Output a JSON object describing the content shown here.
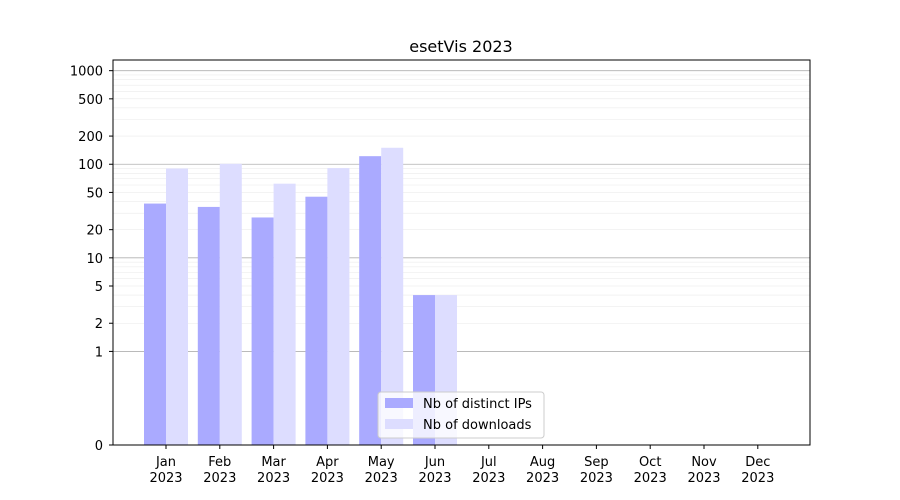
{
  "chart_data": {
    "type": "bar",
    "title": "esetVis 2023",
    "xlabel": "",
    "ylabel": "",
    "y_scale": "symlog",
    "ylim": [
      0,
      1300
    ],
    "y_ticks": [
      "0",
      "1",
      "2",
      "5",
      "10",
      "20",
      "50",
      "100",
      "200",
      "500",
      "1000"
    ],
    "grid": true,
    "legend_position": "lower-center",
    "categories": [
      {
        "month": "Jan",
        "year": "2023"
      },
      {
        "month": "Feb",
        "year": "2023"
      },
      {
        "month": "Mar",
        "year": "2023"
      },
      {
        "month": "Apr",
        "year": "2023"
      },
      {
        "month": "May",
        "year": "2023"
      },
      {
        "month": "Jun",
        "year": "2023"
      },
      {
        "month": "Jul",
        "year": "2023"
      },
      {
        "month": "Aug",
        "year": "2023"
      },
      {
        "month": "Sep",
        "year": "2023"
      },
      {
        "month": "Oct",
        "year": "2023"
      },
      {
        "month": "Nov",
        "year": "2023"
      },
      {
        "month": "Dec",
        "year": "2023"
      }
    ],
    "series": [
      {
        "name": "Nb of distinct IPs",
        "color": "#aaaaff",
        "values": [
          38,
          35,
          27,
          45,
          122,
          4,
          0,
          0,
          0,
          0,
          0,
          0
        ]
      },
      {
        "name": "Nb of downloads",
        "color": "#ddddff",
        "values": [
          90,
          101,
          62,
          91,
          150,
          4,
          0,
          0,
          0,
          0,
          0,
          0
        ]
      }
    ]
  }
}
